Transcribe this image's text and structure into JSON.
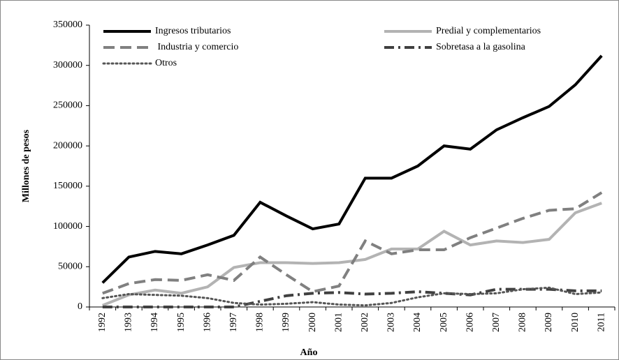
{
  "chart_data": {
    "type": "line",
    "x_label": "Año",
    "y_label": "Millones de pesos",
    "categories": [
      "1992",
      "1993",
      "1994",
      "1995",
      "1996",
      "1997",
      "1998",
      "1999",
      "2000",
      "2001",
      "2002",
      "2003",
      "2004",
      "2005",
      "2006",
      "2007",
      "2008",
      "2009",
      "2010",
      "2011"
    ],
    "series": [
      {
        "name": "Ingresos tributarios",
        "color": "#000000",
        "style": "solid",
        "values": [
          30000,
          62000,
          69000,
          66000,
          77000,
          89000,
          130000,
          113000,
          97000,
          103000,
          160000,
          160000,
          175000,
          200000,
          196000,
          220000,
          235000,
          249000,
          276000,
          312000
        ]
      },
      {
        "name": "Predial y complementarios",
        "color": "#b3b3b3",
        "style": "solid",
        "values": [
          2000,
          15000,
          21000,
          17000,
          25000,
          49000,
          55000,
          55000,
          54000,
          55000,
          59000,
          72000,
          72000,
          94000,
          77000,
          82000,
          80000,
          84000,
          117000,
          129000
        ]
      },
      {
        "name": " Industria y comercio",
        "color": "#808080",
        "style": "dash",
        "values": [
          17000,
          29000,
          34000,
          33000,
          40000,
          33000,
          62000,
          40000,
          19000,
          26000,
          82000,
          66000,
          71000,
          71000,
          86000,
          98000,
          110000,
          120000,
          122000,
          142000
        ]
      },
      {
        "name": "Sobretasa a la gasolina",
        "color": "#404040",
        "style": "dashdot",
        "values": [
          0,
          0,
          0,
          0,
          0,
          0,
          7000,
          14000,
          17000,
          18000,
          16000,
          17000,
          19000,
          17000,
          15000,
          22000,
          22000,
          22000,
          20000,
          20000
        ]
      },
      {
        "name": "Otros",
        "color": "#555555",
        "style": "dot",
        "values": [
          11000,
          16000,
          15000,
          14000,
          11000,
          5000,
          3000,
          4000,
          6000,
          3000,
          2000,
          5000,
          12000,
          17000,
          16000,
          17000,
          22000,
          24000,
          16000,
          18000
        ]
      }
    ],
    "ylim": [
      0,
      350000
    ],
    "yticks": [
      0,
      50000,
      100000,
      150000,
      200000,
      250000,
      300000,
      350000
    ],
    "grid": false,
    "legend": "top"
  }
}
